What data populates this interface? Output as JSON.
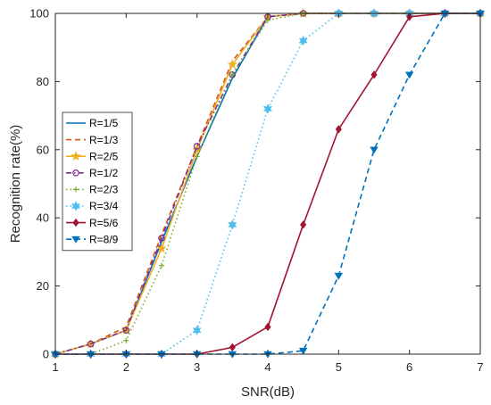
{
  "chart_data": {
    "type": "line",
    "title": "",
    "xlabel": "SNR(dB)",
    "ylabel": "Recognition rate(%)",
    "xlim": [
      1,
      7
    ],
    "ylim": [
      0,
      100
    ],
    "xticks": [
      1,
      2,
      3,
      4,
      5,
      6,
      7
    ],
    "yticks": [
      0,
      20,
      40,
      60,
      80,
      100
    ],
    "grid": false,
    "legend_position": "left",
    "x": [
      1,
      1.5,
      2,
      2.5,
      3,
      3.5,
      4,
      4.5,
      5,
      5.5,
      6,
      6.5,
      7
    ],
    "series": [
      {
        "name": "R=1/5",
        "color": "#0072BD",
        "dash": "solid",
        "marker": "none",
        "values": [
          0,
          3,
          7,
          33,
          58,
          81,
          99,
          100,
          100,
          100,
          100,
          100,
          100
        ]
      },
      {
        "name": "R=1/3",
        "color": "#D95319",
        "dash": "dash",
        "marker": "none",
        "values": [
          0,
          3,
          8,
          35,
          61,
          86,
          99,
          100,
          100,
          100,
          100,
          100,
          100
        ]
      },
      {
        "name": "R=2/5",
        "color": "#EDB120",
        "dash": "solid",
        "marker": "star-filled",
        "values": [
          0,
          3,
          7,
          31,
          60,
          85,
          99,
          100,
          100,
          100,
          100,
          100,
          100
        ]
      },
      {
        "name": "R=1/2",
        "color": "#7E2F8E",
        "dash": "dashdot",
        "marker": "circle-open",
        "values": [
          0,
          3,
          7,
          34,
          61,
          82,
          99,
          100,
          100,
          100,
          100,
          100,
          100
        ]
      },
      {
        "name": "R=2/3",
        "color": "#77AC30",
        "dash": "dot",
        "marker": "plus",
        "values": [
          0,
          0,
          4,
          26,
          58,
          82,
          98,
          100,
          100,
          100,
          100,
          100,
          100
        ]
      },
      {
        "name": "R=3/4",
        "color": "#4DBEEE",
        "dash": "dot",
        "marker": "hexagram",
        "values": [
          0,
          0,
          0,
          0,
          7,
          38,
          72,
          92,
          100,
          100,
          100,
          100,
          100
        ]
      },
      {
        "name": "R=5/6",
        "color": "#A2142F",
        "dash": "solid",
        "marker": "diamond",
        "values": [
          0,
          0,
          0,
          0,
          0,
          2,
          8,
          38,
          66,
          82,
          99,
          100,
          100
        ]
      },
      {
        "name": "R=8/9",
        "color": "#0072BD",
        "dash": "dash",
        "marker": "triangle-down",
        "values": [
          0,
          0,
          0,
          0,
          0,
          0,
          0,
          1,
          23,
          60,
          82,
          100,
          100
        ]
      }
    ]
  }
}
